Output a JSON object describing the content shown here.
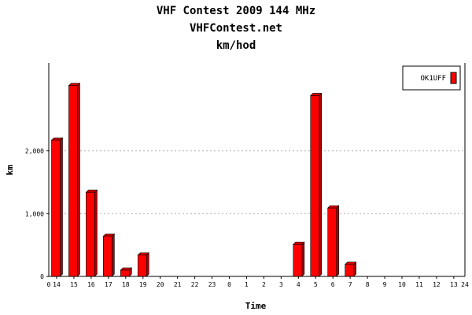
{
  "chart_data": {
    "type": "bar",
    "title": "VHF Contest 2009 144 MHz",
    "subtitle": "VHFContest.net",
    "subtitle2": "km/hod",
    "xlabel": "Time",
    "ylabel": "km",
    "categories": [
      "14",
      "15",
      "16",
      "17",
      "18",
      "19",
      "20",
      "21",
      "22",
      "23",
      "0",
      "1",
      "2",
      "3",
      "4",
      "5",
      "6",
      "7",
      "8",
      "9",
      "10",
      "11",
      "12",
      "13"
    ],
    "x_axis_start_label": "0",
    "x_axis_end_label": "24",
    "series": [
      {
        "name": "OK1UFF",
        "values": [
          2170,
          3040,
          1340,
          640,
          100,
          340,
          0,
          0,
          0,
          0,
          0,
          0,
          0,
          0,
          510,
          2880,
          1090,
          190,
          0,
          0,
          0,
          0,
          0,
          0
        ]
      }
    ],
    "yticks": [
      {
        "value": 0,
        "label": "0"
      },
      {
        "value": 1000,
        "label": "1,000"
      },
      {
        "value": 2000,
        "label": "2,000"
      }
    ],
    "ylim": [
      0,
      3400
    ],
    "grid": true,
    "legend_position": "top-right",
    "colors": {
      "bar_front": "#ff0000",
      "bar_side": "#aa0000",
      "bar_top": "#dd0000",
      "grid": "#aaaaaa",
      "axis": "#000000"
    }
  }
}
